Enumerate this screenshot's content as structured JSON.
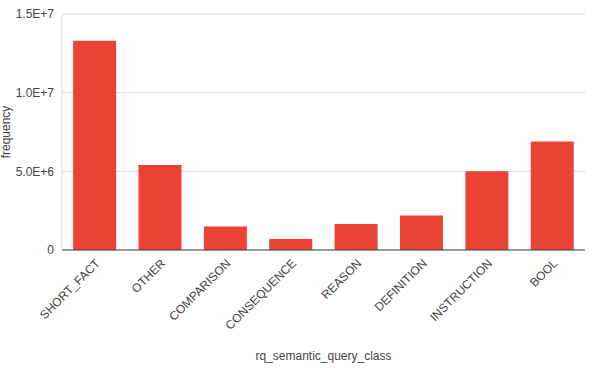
{
  "chart_data": {
    "type": "bar",
    "x_label": "rq_semantic_query_class",
    "y_label": "frequency",
    "categories": [
      "SHORT_FACT",
      "OTHER",
      "COMPARISON",
      "CONSEQUENCE",
      "REASON",
      "DEFINITION",
      "INSTRUCTION",
      "BOOL"
    ],
    "values": [
      13300000,
      5400000,
      1500000,
      700000,
      1650000,
      2200000,
      5000000,
      6900000
    ],
    "color": "#ea4335",
    "ylim": [
      0,
      15000000
    ],
    "yticks": [
      0,
      {
        "value": 5000000,
        "label": "5.0E+6"
      },
      {
        "value": 10000000,
        "label": "1.0E+7"
      },
      {
        "value": 15000000,
        "label": "1.5E+7"
      }
    ],
    "grid": true
  }
}
